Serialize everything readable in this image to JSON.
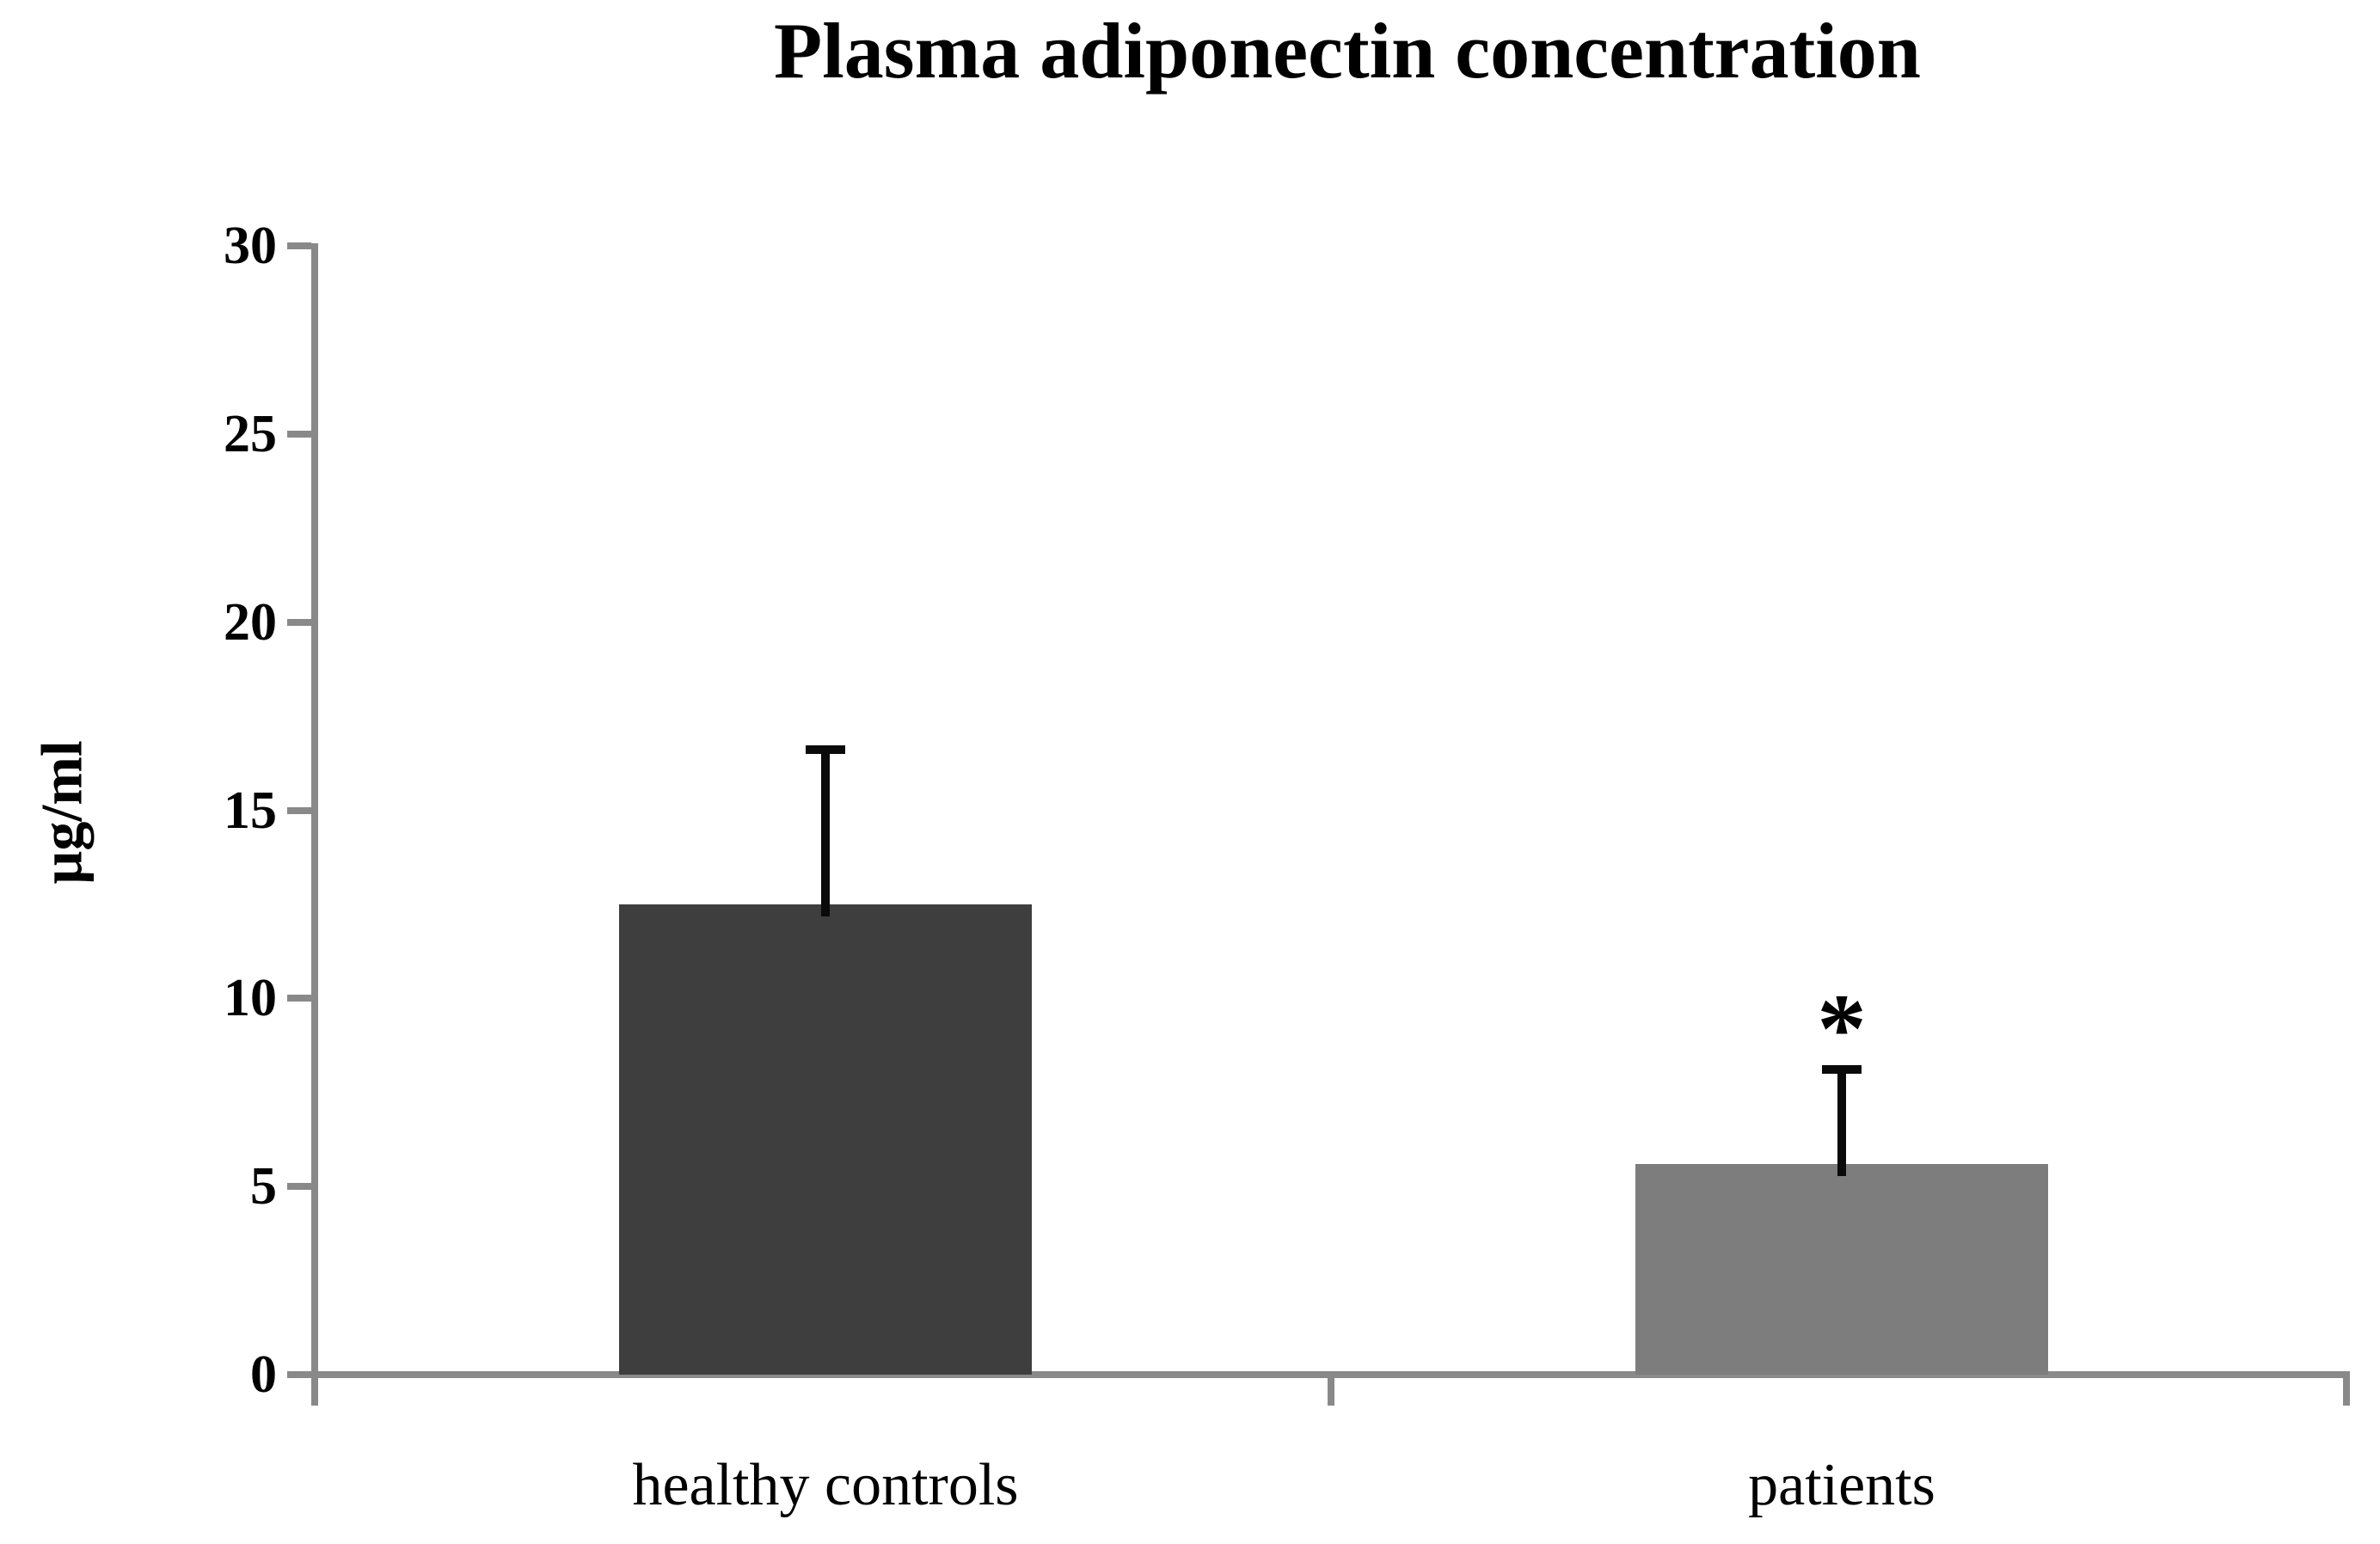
{
  "chart_data": {
    "type": "bar",
    "title": "Plasma adiponectin concentration",
    "xlabel": "",
    "ylabel": "µg/ml",
    "categories": [
      "healthy controls",
      "patients"
    ],
    "series": [
      {
        "values": [
          12.5,
          5.6
        ],
        "errors_plus": [
          4.1,
          2.5
        ]
      }
    ],
    "bar_colors": [
      "#3e3e3e",
      "#7d7d7d"
    ],
    "ylim": [
      0,
      30
    ],
    "yticks": [
      0,
      5,
      10,
      15,
      20,
      25,
      30
    ],
    "grid": false,
    "legend": false,
    "error_bars": "upper only, black, capped",
    "annotations": [
      {
        "category_index": 1,
        "text": "*",
        "position": "above error bar"
      }
    ],
    "colors": {
      "axis": "#898989",
      "error_bar": "#0a0a0a",
      "text": "#000000",
      "background": "#ffffff"
    }
  }
}
